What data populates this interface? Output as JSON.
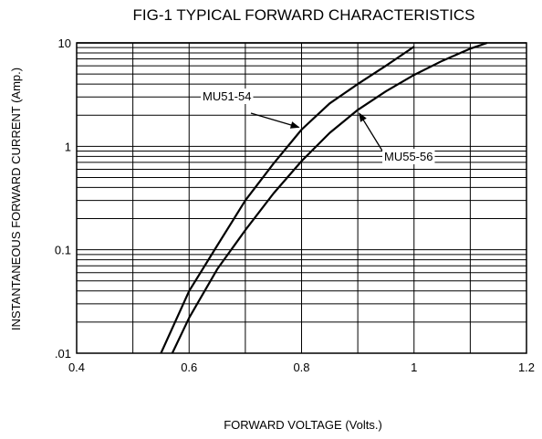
{
  "chart_data": {
    "type": "line",
    "title": "FIG-1 TYPICAL FORWARD CHARACTERISTICS",
    "xlabel": "FORWARD VOLTAGE (Volts.)",
    "ylabel": "INSTANTANEOUS FORWARD CURRENT (Amp.)",
    "xlim": [
      0.4,
      1.2
    ],
    "ylim": [
      0.01,
      10
    ],
    "y_scale": "log",
    "grid": true,
    "x_ticks": [
      0.4,
      0.6,
      0.8,
      1.0,
      1.2
    ],
    "x_tick_labels": [
      "0.4",
      "0.6",
      "0.8",
      "1",
      "1.2"
    ],
    "y_ticks": [
      0.01,
      0.1,
      1,
      10
    ],
    "y_tick_labels": [
      ".01",
      "0.1",
      "1",
      "10"
    ],
    "series": [
      {
        "name": "MU51-54",
        "x": [
          0.55,
          0.6,
          0.65,
          0.7,
          0.75,
          0.8,
          0.85,
          0.9,
          0.95,
          1.0
        ],
        "y": [
          0.01,
          0.04,
          0.11,
          0.3,
          0.68,
          1.45,
          2.6,
          4.0,
          6.0,
          9.2
        ]
      },
      {
        "name": "MU55-56",
        "x": [
          0.57,
          0.6,
          0.65,
          0.7,
          0.75,
          0.8,
          0.85,
          0.9,
          0.95,
          1.0,
          1.05,
          1.1,
          1.13
        ],
        "y": [
          0.01,
          0.022,
          0.065,
          0.155,
          0.35,
          0.72,
          1.35,
          2.25,
          3.4,
          4.9,
          6.7,
          8.8,
          10.0
        ]
      }
    ],
    "annotations": [
      {
        "label": "MU51-54",
        "target_x": 0.8,
        "target_y": 1.5
      },
      {
        "label": "MU55-56",
        "target_x": 0.9,
        "target_y": 2.2
      }
    ]
  }
}
